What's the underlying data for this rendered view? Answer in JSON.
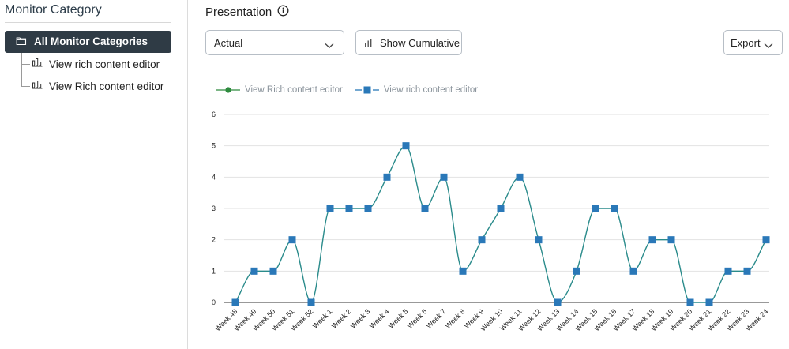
{
  "sidebar": {
    "title": "Monitor Category",
    "root": {
      "label": "All Monitor Categories",
      "icon": "folder-icon"
    },
    "items": [
      {
        "label": "View rich content editor",
        "icon": "bar-chart-icon"
      },
      {
        "label": "View Rich content editor",
        "icon": "bar-chart-icon"
      }
    ]
  },
  "header": {
    "title": "Presentation",
    "info_icon": "info-icon"
  },
  "toolbar": {
    "presentation_select": {
      "value": "Actual",
      "icon": "chevron-down-icon"
    },
    "cumulative_button": {
      "label": "Show Cumulative",
      "icon": "bar-chart-icon"
    },
    "export_button": {
      "label": "Export",
      "icon": "chevron-down-icon"
    }
  },
  "colors": {
    "line": "#2a8b8b",
    "marker_square": "#2a78b8",
    "marker_circle": "#2e8b3e",
    "sidebar_selected_bg": "#2f3b45",
    "legend_text": "#8a939b",
    "grid": "#e2e2e2"
  },
  "chart_data": {
    "type": "line",
    "legend_position": "top-left",
    "grid": true,
    "smooth": true,
    "legend": [
      {
        "name": "View Rich content editor",
        "marker": "circle"
      },
      {
        "name": "View rich content editor",
        "marker": "square"
      }
    ],
    "categories": [
      "Week 48",
      "Week 49",
      "Week 50",
      "Week 51",
      "Week 52",
      "Week 1",
      "Week 2",
      "Week 3",
      "Week 4",
      "Week 5",
      "Week 6",
      "Week 7",
      "Week 8",
      "Week 9",
      "Week 10",
      "Week 11",
      "Week 12",
      "Week 13",
      "Week 14",
      "Week 15",
      "Week 16",
      "Week 17",
      "Week 18",
      "Week 19",
      "Week 20",
      "Week 21",
      "Week 22",
      "Week 23",
      "Week 24"
    ],
    "series": [
      {
        "name": "View rich content editor",
        "values": [
          0,
          1,
          1,
          2,
          0,
          3,
          3,
          3,
          4,
          5,
          3,
          4,
          1,
          2,
          3,
          4,
          2,
          0,
          1,
          3,
          3,
          1,
          2,
          2,
          0,
          0,
          1,
          1,
          2
        ]
      }
    ],
    "ylim": [
      0,
      6
    ],
    "yticks": [
      "0",
      "1",
      "2",
      "3",
      "4",
      "5",
      "6"
    ],
    "xlabel": "",
    "ylabel": ""
  }
}
